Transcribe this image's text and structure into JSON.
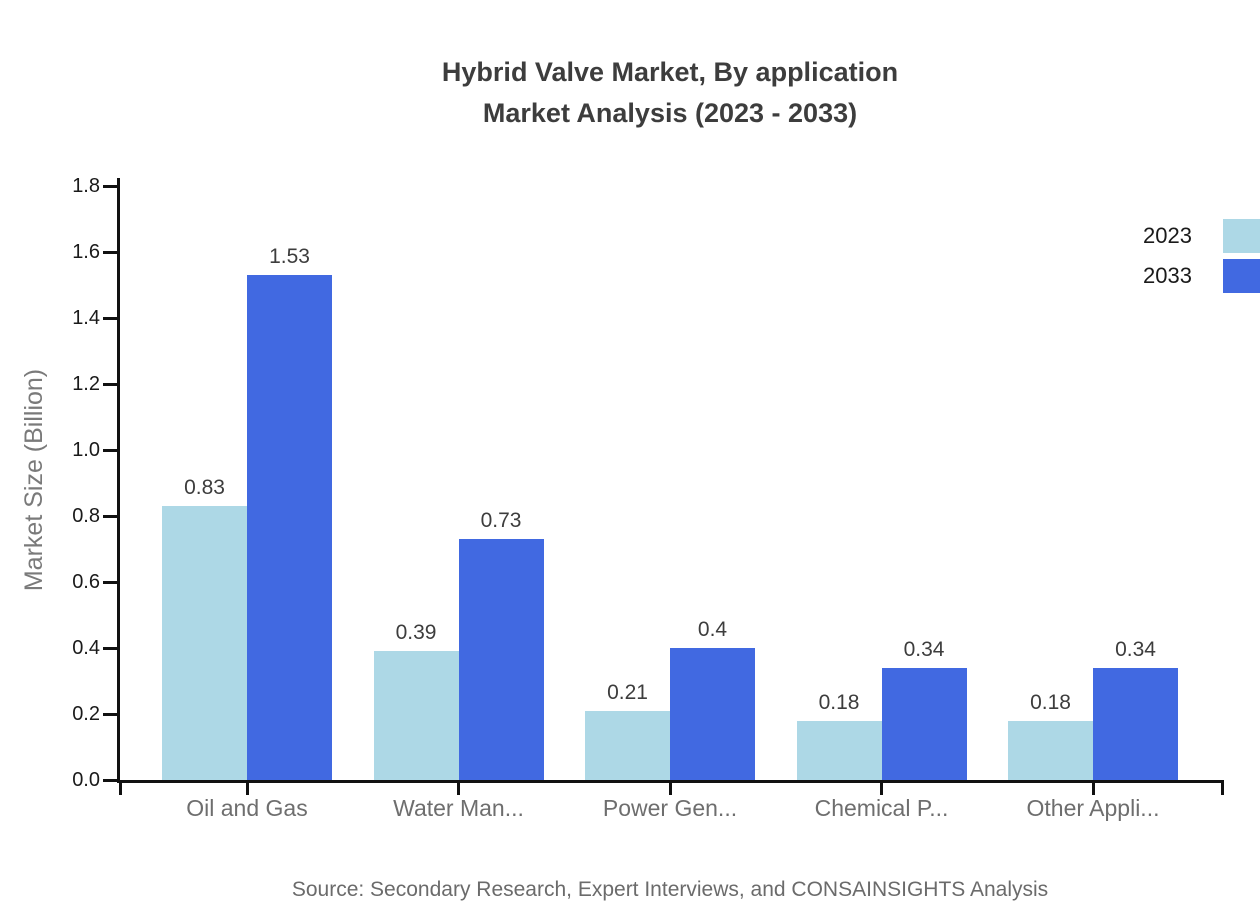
{
  "title": {
    "line1": "Hybrid Valve Market, By application",
    "line2": "Market Analysis (2023 - 2033)"
  },
  "source_note": "Source: Secondary Research, Expert Interviews, and CONSAINSIGHTS Analysis",
  "legend": {
    "items": [
      {
        "label": "2023",
        "color": "#ADD8E6"
      },
      {
        "label": "2033",
        "color": "#4169E1"
      }
    ]
  },
  "colors": {
    "axis": "#111111",
    "series_2023": "#ADD8E6",
    "series_2033": "#4169E1",
    "title_text": "#3d3d3d",
    "tick_text": "#1a1a1a",
    "category_text": "#6e6e6e",
    "value_text": "#3d3d3d",
    "axis_title_text": "#7a7a7a",
    "source_text": "#6b6b6b"
  },
  "chart_data": {
    "type": "bar",
    "title": "Hybrid Valve Market, By application Market Analysis (2023 - 2033)",
    "xlabel": "",
    "ylabel": "Market Size (Billion)",
    "ylim": [
      0,
      1.8
    ],
    "ytick_step": 0.2,
    "ytick_labels": [
      "0.0",
      "0.2",
      "0.4",
      "0.6",
      "0.8",
      "1.0",
      "1.2",
      "1.4",
      "1.6",
      "1.8"
    ],
    "grid": false,
    "legend_position": "top-right",
    "value_labels_shown": true,
    "categories": [
      "Oil and Gas",
      "Water Man...",
      "Power Gen...",
      "Chemical P...",
      "Other Appli..."
    ],
    "series": [
      {
        "name": "2023",
        "color": "#ADD8E6",
        "values": [
          0.83,
          0.39,
          0.21,
          0.18,
          0.18
        ]
      },
      {
        "name": "2033",
        "color": "#4169E1",
        "values": [
          1.53,
          0.73,
          0.4,
          0.34,
          0.34
        ]
      }
    ],
    "value_label_strings": {
      "2023": [
        "0.83",
        "0.39",
        "0.21",
        "0.18",
        "0.18"
      ],
      "2033": [
        "1.53",
        "0.73",
        "0.4",
        "0.34",
        "0.34"
      ]
    }
  }
}
